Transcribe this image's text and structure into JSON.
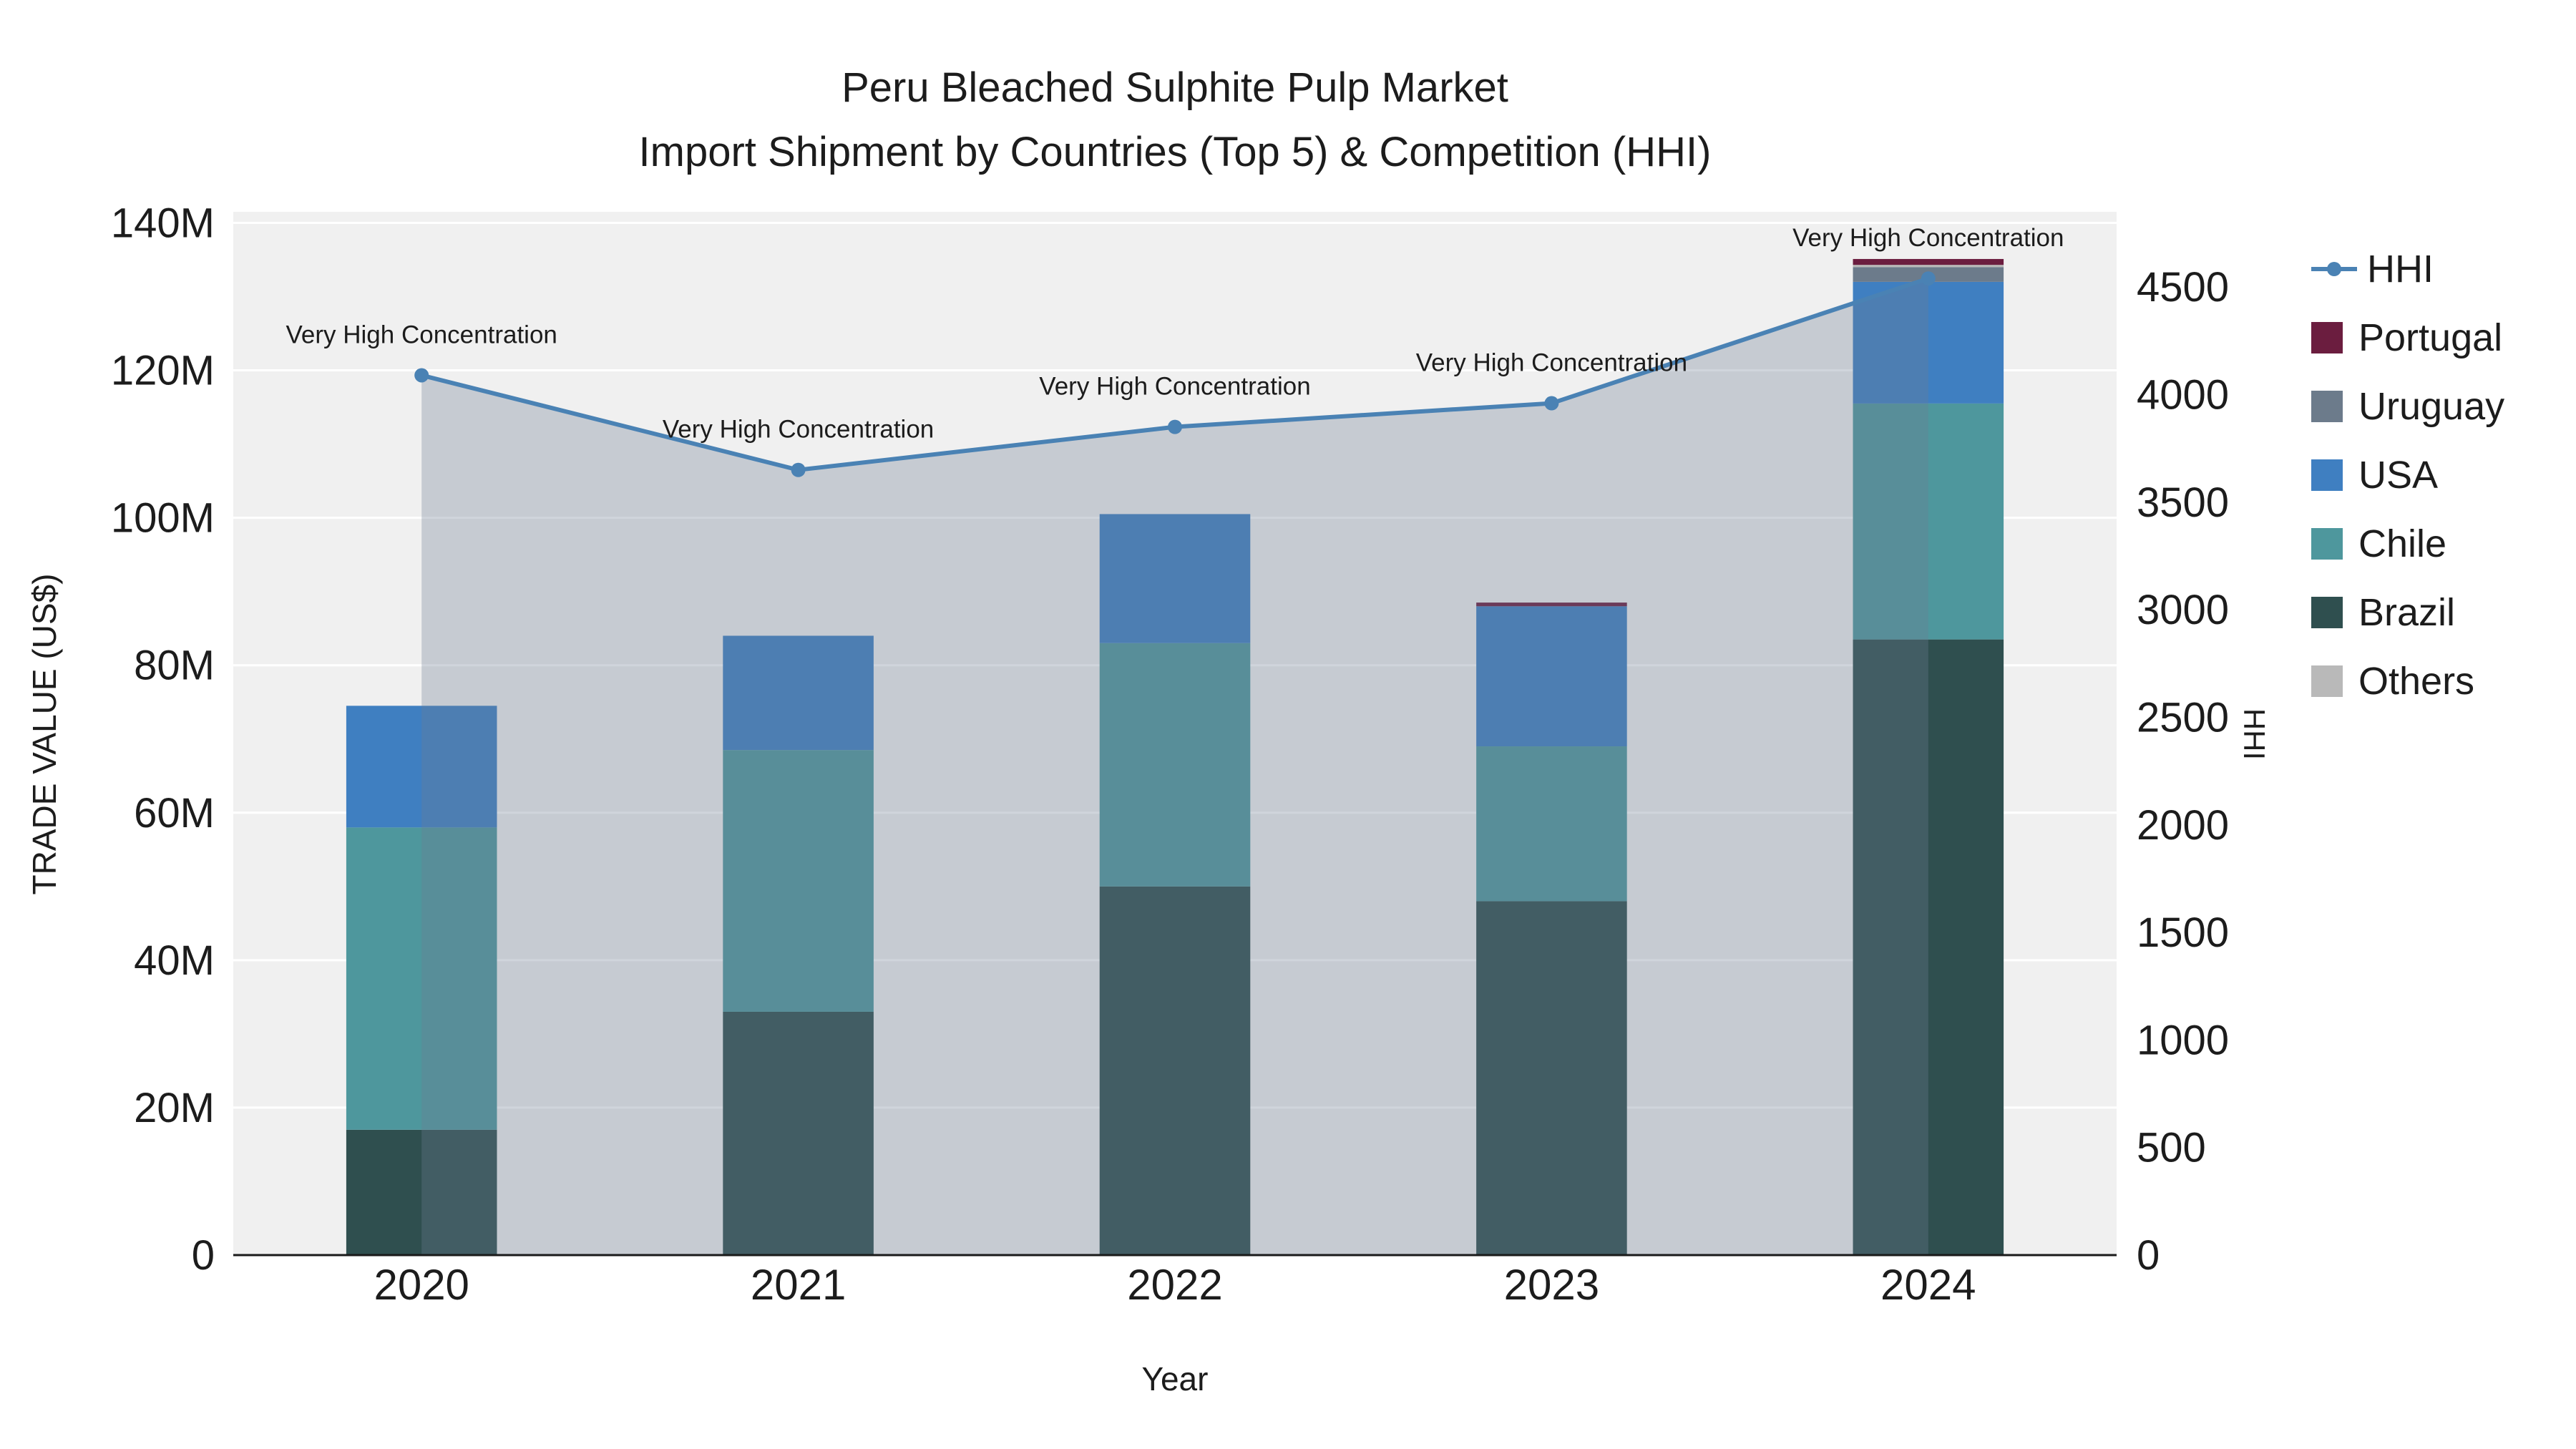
{
  "title": {
    "line1": "Peru Bleached Sulphite Pulp Market",
    "line2": "Import Shipment by Countries (Top 5) & Competition (HHI)"
  },
  "axes": {
    "y_left": {
      "title": "TRADE VALUE (US$)",
      "tick_values": [
        0,
        20,
        40,
        60,
        80,
        100,
        120,
        140
      ],
      "tick_labels": [
        "0",
        "20M",
        "40M",
        "60M",
        "80M",
        "100M",
        "120M",
        "140M"
      ]
    },
    "y_right": {
      "title": "HHI",
      "tick_values": [
        0,
        500,
        1000,
        1500,
        2000,
        2500,
        3000,
        3500,
        4000,
        4500
      ],
      "tick_labels": [
        "0",
        "500",
        "1000",
        "1500",
        "2000",
        "2500",
        "3000",
        "3500",
        "4000",
        "4500"
      ]
    },
    "x": {
      "title": "Year"
    }
  },
  "legend": {
    "items": [
      {
        "label": "HHI",
        "color": "#4A82B4",
        "marker": "line"
      },
      {
        "label": "Portugal",
        "color": "#6B1D3F",
        "marker": "square"
      },
      {
        "label": "Uruguay",
        "color": "#6C7B8B",
        "marker": "square"
      },
      {
        "label": "USA",
        "color": "#3F7FC1",
        "marker": "square"
      },
      {
        "label": "Chile",
        "color": "#4E979D",
        "marker": "square"
      },
      {
        "label": "Brazil",
        "color": "#2F4F4F",
        "marker": "square"
      },
      {
        "label": "Others",
        "color": "#B9B9B9",
        "marker": "square"
      }
    ]
  },
  "chart_data": {
    "type": "bar",
    "subtype": "stacked-bars-with-line-overlay",
    "categories": [
      "2020",
      "2021",
      "2022",
      "2023",
      "2024"
    ],
    "value_unit": "millions US$",
    "stack_order": [
      "Brazil",
      "Chile",
      "USA",
      "Uruguay",
      "Others",
      "Portugal"
    ],
    "series": [
      {
        "name": "Brazil",
        "color": "#2F4F4F",
        "values": [
          17,
          33,
          50,
          48,
          83.5
        ]
      },
      {
        "name": "Chile",
        "color": "#4E979D",
        "values": [
          41,
          35.5,
          33,
          21,
          32
        ]
      },
      {
        "name": "USA",
        "color": "#3F7FC1",
        "values": [
          16.5,
          15.5,
          17.5,
          19,
          16.5
        ]
      },
      {
        "name": "Uruguay",
        "color": "#6C7B8B",
        "values": [
          0,
          0,
          0,
          0,
          2
        ]
      },
      {
        "name": "Others",
        "color": "#B9B9B9",
        "values": [
          0,
          0,
          0,
          0,
          0.3
        ]
      },
      {
        "name": "Portugal",
        "color": "#6B1D3F",
        "values": [
          0,
          0,
          0,
          0.5,
          0.8
        ]
      }
    ],
    "totals_musd": [
      74.5,
      84,
      100.5,
      88.5,
      135.1
    ],
    "hhi": {
      "name": "HHI",
      "color": "#4A82B4",
      "area_fill": "rgba(110,125,145,0.32)",
      "values": [
        4090,
        3650,
        3850,
        3960,
        4540
      ],
      "annotation": "Very High Concentration"
    },
    "ylim_left_musd": [
      0,
      140
    ],
    "ylim_right_hhi": [
      0,
      4500
    ],
    "grid": true,
    "legend_position": "right"
  }
}
